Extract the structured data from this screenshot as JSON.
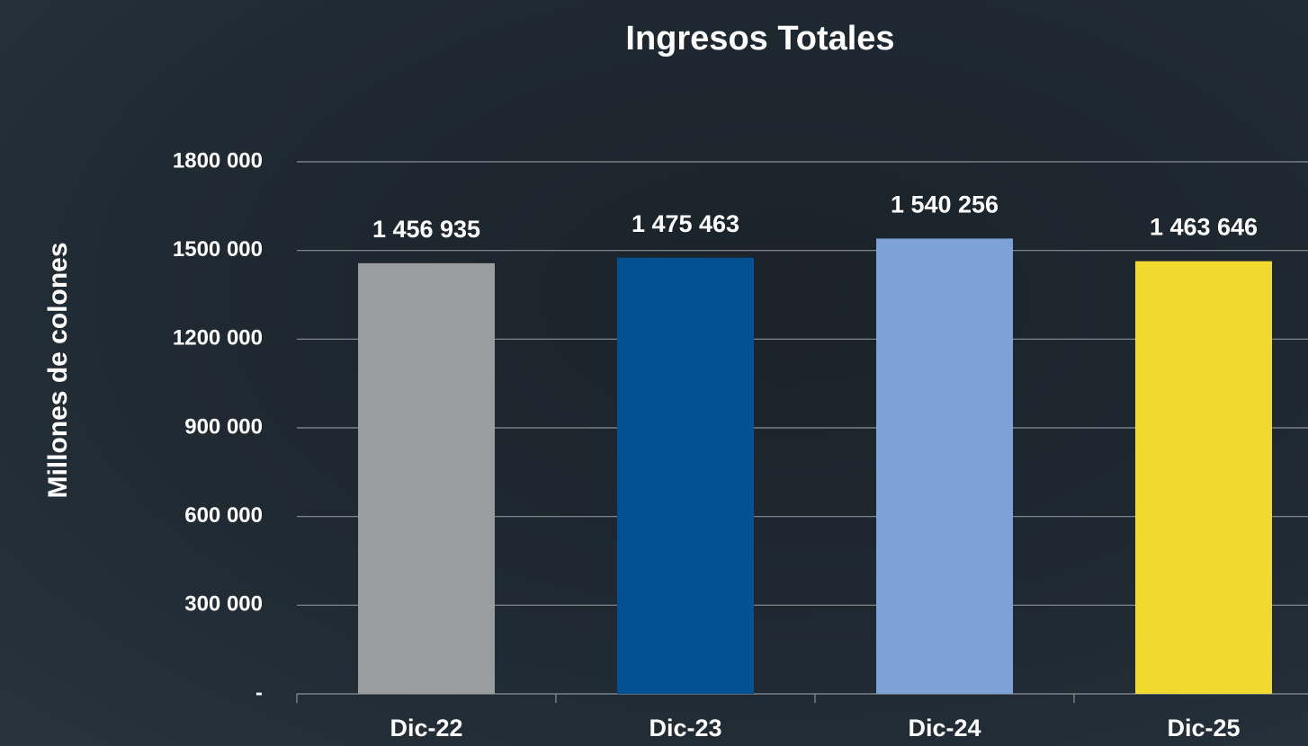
{
  "chart_data": {
    "type": "bar",
    "title": "Ingresos Totales",
    "y_label": "Millones de colones",
    "categories": [
      "Dic-22",
      "Dic-23",
      "Dic-24",
      "Dic-25"
    ],
    "values": [
      1456935,
      1475463,
      1540256,
      1463646
    ],
    "value_labels": [
      "1 456 935",
      "1 475 463",
      "1 540 256",
      "1 463 646"
    ],
    "colors": [
      "#9a9d9e",
      "#035092",
      "#7fa2d6",
      "#f2d930"
    ],
    "ylim": [
      0,
      1800000
    ],
    "yticks": [
      {
        "value": 0,
        "label": "-"
      },
      {
        "value": 300000,
        "label": "300 000"
      },
      {
        "value": 600000,
        "label": "600 000"
      },
      {
        "value": 900000,
        "label": "900 000"
      },
      {
        "value": 1200000,
        "label": "1200 000"
      },
      {
        "value": 1500000,
        "label": "1500 000"
      },
      {
        "value": 1800000,
        "label": "1800 000"
      }
    ],
    "grid": true
  }
}
